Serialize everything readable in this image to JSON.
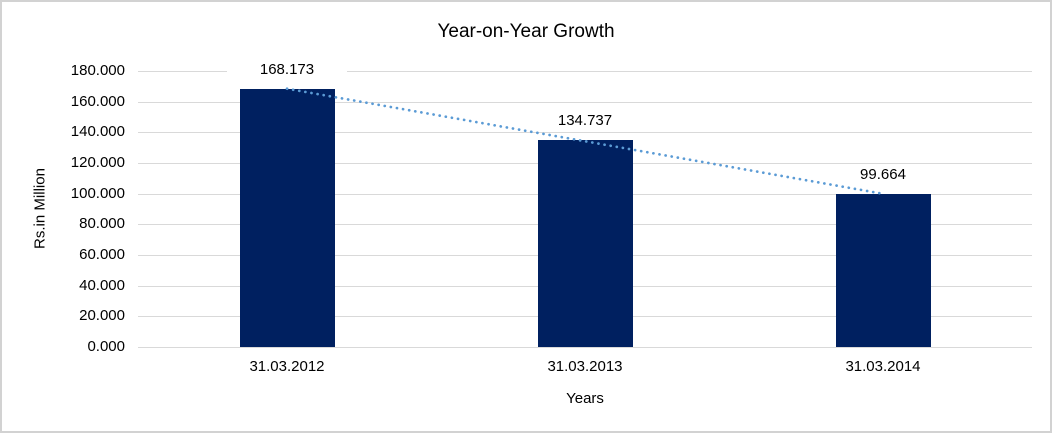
{
  "chart_data": {
    "type": "bar",
    "title": "Year-on-Year Growth",
    "categories": [
      "31.03.2012",
      "31.03.2013",
      "31.03.2014"
    ],
    "values": [
      168.173,
      134.737,
      99.664
    ],
    "data_labels": [
      "168.173",
      "134.737",
      "99.664"
    ],
    "xlabel": "Years",
    "ylabel": "Rs.in Million",
    "ylim": [
      0,
      180
    ],
    "ytick_step": 20,
    "ytick_labels": [
      "0.000",
      "20.000",
      "40.000",
      "60.000",
      "80.000",
      "100.000",
      "120.000",
      "140.000",
      "160.000",
      "180.000"
    ],
    "grid": true,
    "legend": "none",
    "trendline": {
      "kind": "linear",
      "style": "dotted"
    },
    "colors": {
      "bar": "#002060",
      "trendline": "#5b9bd5",
      "gridline": "#d9d9d9",
      "text": "#000000",
      "border": "#d2d2d2",
      "background": "#ffffff"
    }
  }
}
